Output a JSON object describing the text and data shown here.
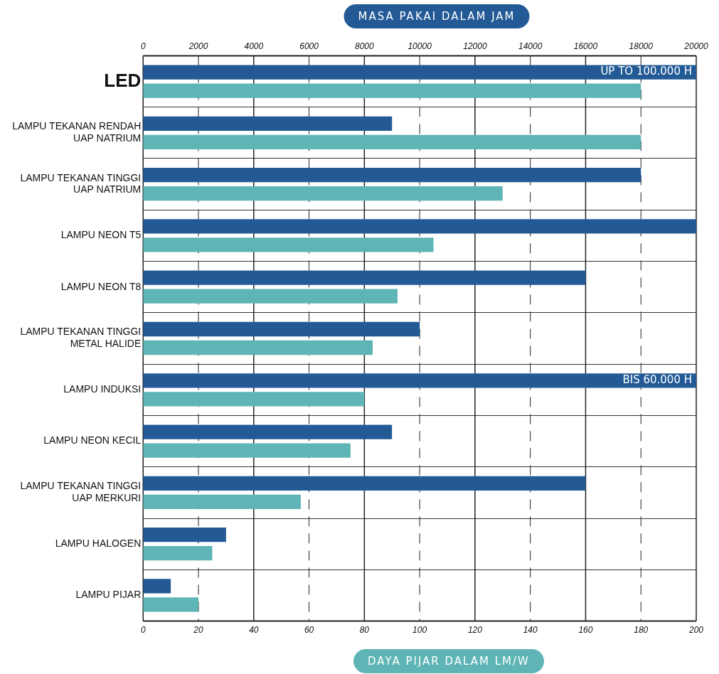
{
  "chart_data": {
    "type": "bar",
    "orientation": "horizontal",
    "xlabel": "DAYA PIJAR DALAM LM/W",
    "x2label": "MASA PAKAI DALAM JAM",
    "categories": [
      "LED",
      "LAMPU TEKANAN RENDAH\nUAP NATRIUM",
      "LAMPU TEKANAN TINGGI\nUAP NATRIUM",
      "LAMPU NEON T5",
      "LAMPU NEON T8",
      "LAMPU TEKANAN TINGGI\nMETAL HALIDE",
      "LAMPU INDUKSI",
      "LAMPU NEON KECIL",
      "LAMPU TEKANAN TINGGI\nUAP MERKURI",
      "LAMPU HALOGEN",
      "LAMPU PIJAR"
    ],
    "series": [
      {
        "color": "#235a96",
        "axis": "x2",
        "values": [
          20000,
          9000,
          18000,
          20000,
          16000,
          10000,
          20000,
          9000,
          16000,
          3000,
          1000
        ],
        "value_labels": [
          "UP TO 100.000 H",
          null,
          null,
          null,
          null,
          null,
          "BIS 60.000 H",
          null,
          null,
          null,
          null
        ]
      },
      {
        "color": "#5fb5b5",
        "values": [
          180,
          180,
          130,
          105,
          92,
          83,
          80,
          75,
          57,
          25,
          20
        ]
      }
    ],
    "xlim": [
      0,
      200
    ],
    "xticks": [
      0,
      20,
      40,
      60,
      80,
      100,
      120,
      140,
      160,
      180,
      200
    ],
    "x2lim": [
      0,
      20000
    ],
    "x2ticks": [
      0,
      2000,
      4000,
      6000,
      8000,
      10000,
      12000,
      14000,
      16000,
      18000,
      20000
    ],
    "grid": true,
    "legend": false
  }
}
